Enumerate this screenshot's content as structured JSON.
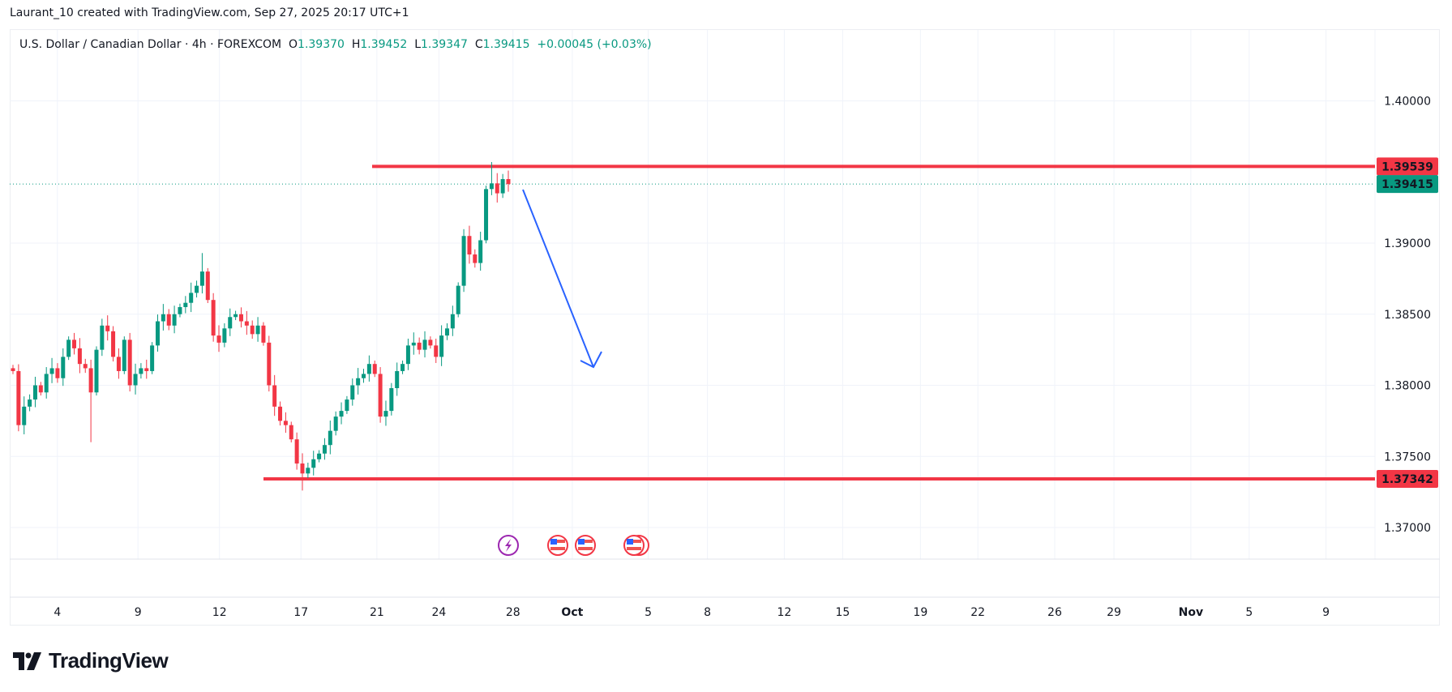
{
  "credit": "Laurant_10 created with TradingView.com, Sep 27, 2025 20:17 UTC+1",
  "legend": {
    "symbol": "U.S. Dollar / Canadian Dollar · 4h · FOREXCOM",
    "o_label": "O",
    "o": "1.39370",
    "h_label": "H",
    "h": "1.39452",
    "l_label": "L",
    "l": "1.39347",
    "c_label": "C",
    "c": "1.39415",
    "change": "+0.00045 (+0.03%)"
  },
  "logo": "TradingView",
  "colors": {
    "up": "#089981",
    "down": "#f23645",
    "arrow": "#2962ff",
    "grid": "#f0f3fa"
  },
  "chart_data": {
    "type": "candlestick",
    "title": "U.S. Dollar / Canadian Dollar · 4h · FOREXCOM",
    "ylim": [
      1.368,
      1.4045
    ],
    "y_ticks": [
      "1.40000",
      "1.39000",
      "1.38500",
      "1.38000",
      "1.37500",
      "1.37000"
    ],
    "x_ticks": [
      {
        "label": "4",
        "bold": false
      },
      {
        "label": "9",
        "bold": false
      },
      {
        "label": "12",
        "bold": false
      },
      {
        "label": "17",
        "bold": false
      },
      {
        "label": "21",
        "bold": false
      },
      {
        "label": "24",
        "bold": false
      },
      {
        "label": "28",
        "bold": false
      },
      {
        "label": "Oct",
        "bold": true
      },
      {
        "label": "5",
        "bold": false
      },
      {
        "label": "8",
        "bold": false
      },
      {
        "label": "12",
        "bold": false
      },
      {
        "label": "15",
        "bold": false
      },
      {
        "label": "19",
        "bold": false
      },
      {
        "label": "22",
        "bold": false
      },
      {
        "label": "26",
        "bold": false
      },
      {
        "label": "29",
        "bold": false
      },
      {
        "label": "Nov",
        "bold": true
      },
      {
        "label": "5",
        "bold": false
      },
      {
        "label": "9",
        "bold": false
      }
    ],
    "first_open": 1.3812,
    "closes": [
      1.381,
      1.3772,
      1.3785,
      1.379,
      1.38,
      1.3795,
      1.3808,
      1.3812,
      1.3805,
      1.382,
      1.3832,
      1.3826,
      1.3815,
      1.3812,
      1.3795,
      1.3825,
      1.3842,
      1.3838,
      1.382,
      1.381,
      1.3832,
      1.38,
      1.3808,
      1.3812,
      1.381,
      1.3828,
      1.3845,
      1.385,
      1.3842,
      1.385,
      1.3855,
      1.3858,
      1.3865,
      1.387,
      1.388,
      1.386,
      1.3835,
      1.383,
      1.384,
      1.3848,
      1.385,
      1.3845,
      1.3842,
      1.3836,
      1.3842,
      1.383,
      1.38,
      1.3785,
      1.3775,
      1.3772,
      1.3762,
      1.3745,
      1.3738,
      1.3742,
      1.3748,
      1.3752,
      1.3758,
      1.3768,
      1.3778,
      1.3782,
      1.379,
      1.38,
      1.3805,
      1.3808,
      1.3815,
      1.3808,
      1.3778,
      1.3782,
      1.3798,
      1.381,
      1.3815,
      1.3828,
      1.383,
      1.3825,
      1.3832,
      1.3828,
      1.382,
      1.3835,
      1.384,
      1.385,
      1.387,
      1.3905,
      1.3892,
      1.3886,
      1.3902,
      1.3938,
      1.3942,
      1.3935,
      1.3945,
      1.39415
    ],
    "horizontal_levels": [
      {
        "name": "resistance",
        "value": 1.39539,
        "label": "1.39539",
        "color": "#f23645"
      },
      {
        "name": "support",
        "value": 1.37342,
        "label": "1.37342",
        "color": "#f23645"
      }
    ],
    "last_price": {
      "value": 1.39415,
      "label": "1.39415",
      "color": "#089981"
    },
    "annotation": "Bearish arrow projecting a move down from ~1.3940 toward ~1.3815",
    "events": [
      "lightning",
      "us-flag",
      "us-flag",
      "us-flag"
    ]
  }
}
